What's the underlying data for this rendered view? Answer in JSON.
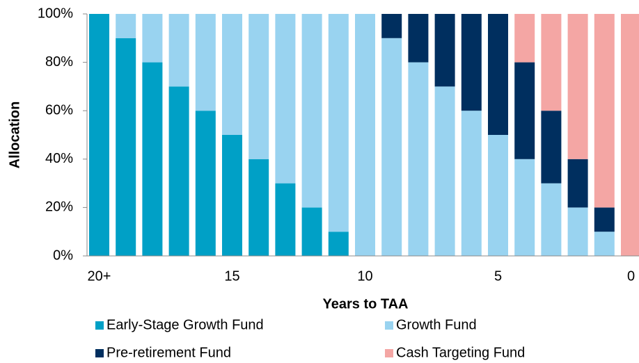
{
  "chart_data": {
    "type": "stacked_bar",
    "xlabel": "Years to TAA",
    "ylabel": "Allocation",
    "categories": [
      "20+",
      null,
      null,
      null,
      null,
      "15",
      null,
      null,
      null,
      null,
      "10",
      null,
      null,
      null,
      null,
      "5",
      null,
      null,
      null,
      null,
      "0"
    ],
    "series": [
      {
        "name": "Early-Stage Growth Fund",
        "color": "#00a0c6",
        "values": [
          100,
          90,
          80,
          70,
          60,
          50,
          40,
          30,
          20,
          10,
          0,
          0,
          0,
          0,
          0,
          0,
          0,
          0,
          0,
          0,
          0
        ]
      },
      {
        "name": "Growth Fund",
        "color": "#99d3f0",
        "values": [
          0,
          10,
          20,
          30,
          40,
          50,
          60,
          70,
          80,
          90,
          100,
          90,
          80,
          70,
          60,
          50,
          40,
          30,
          20,
          10,
          0
        ]
      },
      {
        "name": "Pre-retirement Fund",
        "color": "#002f5f",
        "values": [
          0,
          0,
          0,
          0,
          0,
          0,
          0,
          0,
          0,
          0,
          0,
          10,
          20,
          30,
          40,
          50,
          40,
          30,
          20,
          10,
          0
        ]
      },
      {
        "name": "Cash Targeting Fund",
        "color": "#f4a6a4",
        "values": [
          0,
          0,
          0,
          0,
          0,
          0,
          0,
          0,
          0,
          0,
          0,
          0,
          0,
          0,
          0,
          0,
          20,
          40,
          60,
          80,
          100
        ]
      }
    ],
    "ylim": [
      0,
      100
    ],
    "yticks": [
      {
        "value": 0,
        "label": "0%"
      },
      {
        "value": 20,
        "label": "20%"
      },
      {
        "value": 40,
        "label": "40%"
      },
      {
        "value": 60,
        "label": "60%"
      },
      {
        "value": 80,
        "label": "80%"
      },
      {
        "value": 100,
        "label": "100%"
      }
    ],
    "legend": "bottom"
  }
}
